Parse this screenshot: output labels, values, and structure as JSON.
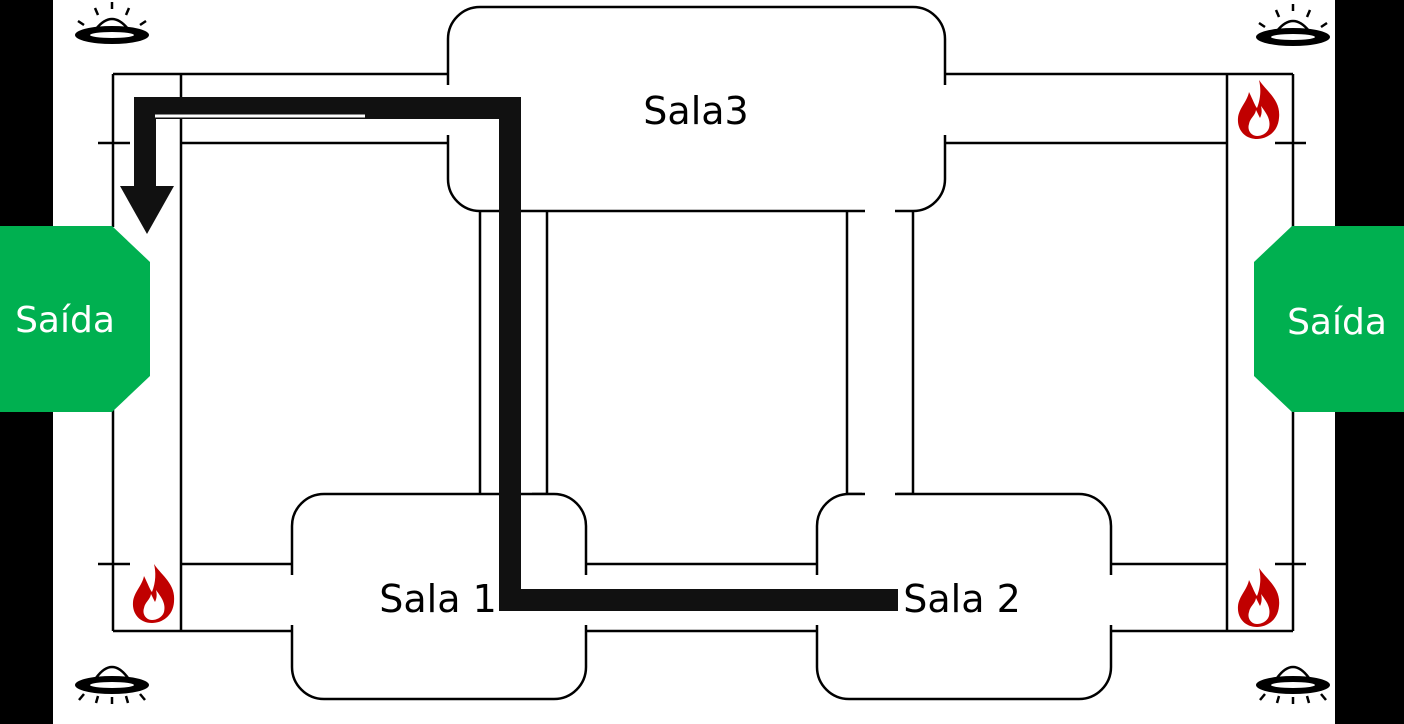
{
  "rooms": {
    "sala1": "Sala 1",
    "sala2": "Sala 2",
    "sala3": "Sala3"
  },
  "exits": {
    "left": "Saída",
    "right": "Saída"
  },
  "colors": {
    "exit": "#00b050",
    "route": "#111111",
    "fire_outer": "#c00000",
    "fire_inner": "#ff3300"
  },
  "icons": {
    "sensor": "ufo-shaped-sensor-icon",
    "fire": "fire-icon",
    "arrow": "route-arrow"
  }
}
